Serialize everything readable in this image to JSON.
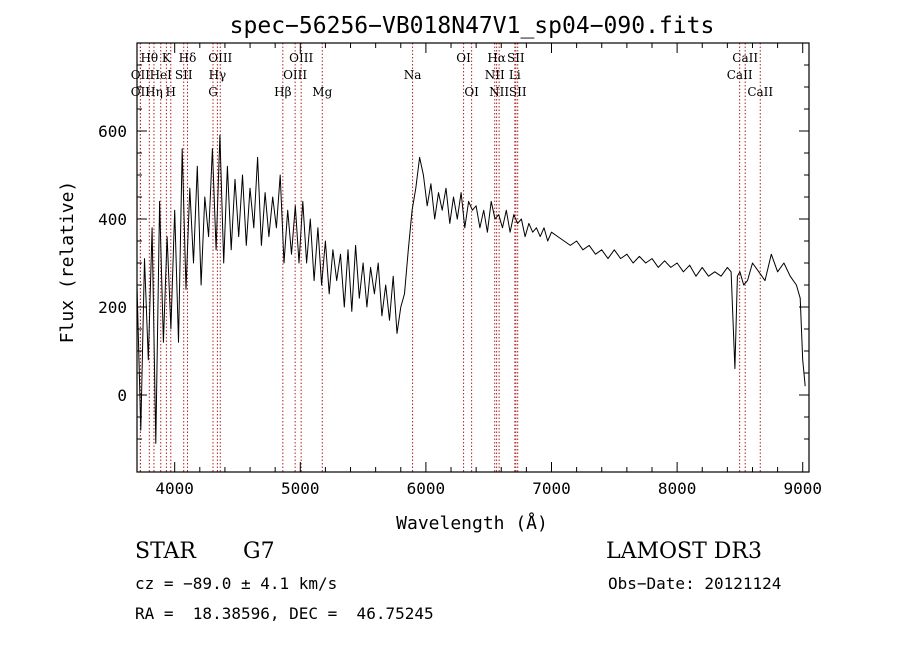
{
  "chart_data": {
    "type": "line",
    "title": "spec−56256−VB018N47V1_sp04−090.fits",
    "xlabel": "Wavelength (Å)",
    "ylabel": "Flux (relative)",
    "xlim": [
      3700,
      9050
    ],
    "ylim": [
      -175,
      800
    ],
    "xticks": [
      4000,
      5000,
      6000,
      7000,
      8000,
      9000
    ],
    "yticks": [
      0,
      200,
      400,
      600
    ],
    "series": [
      {
        "name": "flux",
        "x": [
          3700,
          3730,
          3760,
          3790,
          3820,
          3850,
          3880,
          3910,
          3940,
          3970,
          4000,
          4030,
          4060,
          4090,
          4120,
          4150,
          4180,
          4210,
          4240,
          4270,
          4300,
          4330,
          4360,
          4390,
          4420,
          4450,
          4480,
          4510,
          4540,
          4570,
          4600,
          4630,
          4660,
          4690,
          4720,
          4750,
          4780,
          4810,
          4840,
          4870,
          4900,
          4930,
          4960,
          4990,
          5020,
          5050,
          5080,
          5110,
          5140,
          5170,
          5200,
          5230,
          5260,
          5290,
          5320,
          5350,
          5380,
          5410,
          5440,
          5470,
          5500,
          5530,
          5560,
          5590,
          5620,
          5650,
          5680,
          5710,
          5740,
          5770,
          5800,
          5830,
          5860,
          5890,
          5920,
          5950,
          5980,
          6010,
          6040,
          6070,
          6100,
          6130,
          6160,
          6190,
          6220,
          6250,
          6280,
          6310,
          6340,
          6370,
          6400,
          6430,
          6460,
          6490,
          6520,
          6550,
          6580,
          6610,
          6640,
          6670,
          6700,
          6730,
          6760,
          6790,
          6820,
          6850,
          6880,
          6910,
          6940,
          6970,
          7000,
          7050,
          7100,
          7150,
          7200,
          7250,
          7300,
          7350,
          7400,
          7450,
          7500,
          7550,
          7600,
          7650,
          7700,
          7750,
          7800,
          7850,
          7900,
          7950,
          8000,
          8050,
          8100,
          8150,
          8200,
          8250,
          8300,
          8350,
          8400,
          8430,
          8460,
          8480,
          8500,
          8530,
          8560,
          8600,
          8650,
          8700,
          8750,
          8800,
          8850,
          8900,
          8950,
          8980,
          9000,
          9020
        ],
        "y": [
          250,
          -80,
          310,
          80,
          380,
          -110,
          440,
          120,
          360,
          150,
          420,
          120,
          560,
          240,
          470,
          300,
          520,
          250,
          450,
          360,
          560,
          330,
          590,
          300,
          520,
          330,
          490,
          360,
          500,
          340,
          470,
          380,
          540,
          340,
          460,
          360,
          450,
          380,
          500,
          300,
          420,
          320,
          430,
          300,
          440,
          300,
          400,
          260,
          380,
          250,
          350,
          230,
          330,
          260,
          320,
          200,
          330,
          190,
          340,
          220,
          300,
          200,
          290,
          230,
          300,
          180,
          250,
          170,
          270,
          140,
          200,
          230,
          330,
          420,
          470,
          540,
          500,
          430,
          480,
          400,
          460,
          420,
          470,
          390,
          450,
          400,
          460,
          380,
          440,
          420,
          430,
          380,
          420,
          370,
          440,
          400,
          410,
          380,
          420,
          370,
          410,
          390,
          400,
          360,
          390,
          370,
          380,
          360,
          380,
          350,
          370,
          360,
          350,
          340,
          350,
          330,
          340,
          320,
          330,
          310,
          330,
          310,
          320,
          300,
          315,
          300,
          310,
          290,
          305,
          290,
          300,
          280,
          295,
          270,
          290,
          270,
          280,
          270,
          290,
          280,
          60,
          270,
          280,
          250,
          260,
          300,
          280,
          260,
          320,
          280,
          300,
          270,
          250,
          220,
          80,
          20
        ]
      }
    ],
    "lines": [
      {
        "label": "OII",
        "wavelength": 3727,
        "row": 2
      },
      {
        "label": "OII",
        "wavelength": 3727,
        "row": 3
      },
      {
        "label": "Hθ",
        "wavelength": 3798,
        "row": 1
      },
      {
        "label": "Hη",
        "wavelength": 3835,
        "row": 3
      },
      {
        "label": "HeI",
        "wavelength": 3889,
        "row": 2
      },
      {
        "label": "K",
        "wavelength": 3934,
        "row": 1
      },
      {
        "label": "H",
        "wavelength": 3969,
        "row": 3
      },
      {
        "label": "SII",
        "wavelength": 4072,
        "row": 2
      },
      {
        "label": "Hδ",
        "wavelength": 4102,
        "row": 1
      },
      {
        "label": "OIII",
        "wavelength": 4363,
        "row": 1
      },
      {
        "label": "Hγ",
        "wavelength": 4340,
        "row": 2
      },
      {
        "label": "G",
        "wavelength": 4305,
        "row": 3
      },
      {
        "label": "Hβ",
        "wavelength": 4861,
        "row": 3
      },
      {
        "label": "OIII",
        "wavelength": 5007,
        "row": 1
      },
      {
        "label": "OIII",
        "wavelength": 4959,
        "row": 2
      },
      {
        "label": "Mg",
        "wavelength": 5175,
        "row": 3
      },
      {
        "label": "Na",
        "wavelength": 5894,
        "row": 2
      },
      {
        "label": "OI",
        "wavelength": 6300,
        "row": 1
      },
      {
        "label": "OI",
        "wavelength": 6364,
        "row": 3
      },
      {
        "label": "Hα",
        "wavelength": 6563,
        "row": 1
      },
      {
        "label": "NII",
        "wavelength": 6548,
        "row": 2
      },
      {
        "label": "NII",
        "wavelength": 6583,
        "row": 3
      },
      {
        "label": "SII",
        "wavelength": 6716,
        "row": 1
      },
      {
        "label": "Li",
        "wavelength": 6708,
        "row": 2
      },
      {
        "label": "SII",
        "wavelength": 6731,
        "row": 3
      },
      {
        "label": "CaII",
        "wavelength": 8498,
        "row": 2
      },
      {
        "label": "CaII",
        "wavelength": 8542,
        "row": 1
      },
      {
        "label": "CaII",
        "wavelength": 8662,
        "row": 3
      }
    ]
  },
  "info": {
    "object_class": "STAR",
    "subclass": "G7",
    "survey": "LAMOST DR3",
    "redshift": "cz = −89.0 ± 4.1 km/s",
    "obs_date": "Obs−Date: 20121124",
    "coords": "RA =  18.38596, DEC =  46.75245"
  },
  "colors": {
    "line_marker": "#b22222",
    "spectrum": "#000000"
  }
}
